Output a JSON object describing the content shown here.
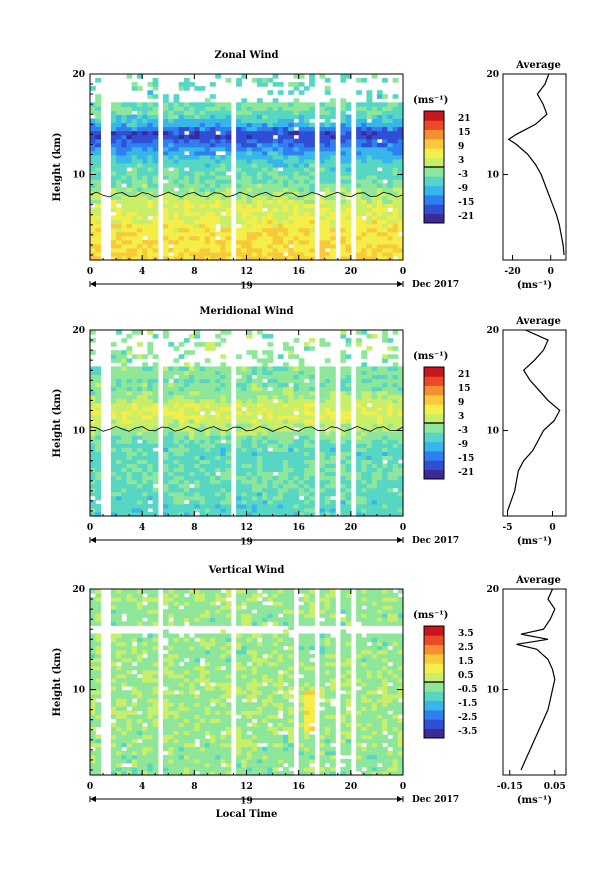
{
  "colorscale": [
    "#3b2a98",
    "#2f4fd6",
    "#2f7ff0",
    "#38b6ec",
    "#57d6c4",
    "#8ee69b",
    "#c8ee6a",
    "#f3ee49",
    "#f8c93b",
    "#f4902f",
    "#ea4a25",
    "#c8161e"
  ],
  "chart_data": [
    {
      "type": "heatmap",
      "title": "Zonal Wind",
      "ylabel": "Height (km)",
      "xlabel": "",
      "date_label": "19",
      "date_suffix": "Dec 2017",
      "x_ticks": [
        "0",
        "4",
        "8",
        "12",
        "16",
        "20",
        "0"
      ],
      "y_ticks": [
        "10",
        "20"
      ],
      "xlim": [
        0,
        24
      ],
      "ylim": [
        1.5,
        20
      ],
      "colorbar": {
        "unit": "(ms⁻¹)",
        "ticks": [
          "21",
          "15",
          "9",
          "3",
          "-3",
          "-9",
          "-15",
          "-21"
        ],
        "range": [
          -24,
          24
        ]
      },
      "data_gaps_hours": [
        [
          1.0,
          1.4
        ],
        [
          5.3,
          5.7
        ],
        [
          10.7,
          11.2
        ],
        [
          17.1,
          17.4
        ],
        [
          18.9,
          19.3
        ],
        [
          20.0,
          20.3
        ]
      ],
      "profile_stops_km": [
        {
          "h": 2,
          "v": 9
        },
        {
          "h": 5,
          "v": 6
        },
        {
          "h": 7,
          "v": 3
        },
        {
          "h": 9,
          "v": -3
        },
        {
          "h": 11,
          "v": -6
        },
        {
          "h": 12.5,
          "v": -12
        },
        {
          "h": 14,
          "v": -20
        },
        {
          "h": 15,
          "v": -10
        },
        {
          "h": 16.5,
          "v": -3
        },
        {
          "h": 18,
          "v": -6
        },
        {
          "h": 20,
          "v": -4
        }
      ],
      "profile_top_blank_km": 17,
      "average": {
        "title": "Average",
        "xlabel": "(ms⁻¹)",
        "x_ticks": [
          "-20",
          "0"
        ],
        "y_ticks": [
          "10",
          "20"
        ],
        "xlim": [
          -25,
          8
        ],
        "height_km": [
          2,
          3,
          4,
          5,
          6,
          7,
          8,
          9,
          10,
          11,
          12,
          13,
          13.5,
          14,
          15,
          16,
          17,
          18,
          19,
          20
        ],
        "values": [
          7,
          6.5,
          5.5,
          4.5,
          3,
          1,
          -1,
          -3,
          -5,
          -8,
          -12,
          -18,
          -22,
          -18,
          -8,
          -2,
          -4,
          -7,
          -3,
          -1
        ]
      }
    },
    {
      "type": "heatmap",
      "title": "Meridional Wind",
      "ylabel": "Height (km)",
      "xlabel": "",
      "date_label": "19",
      "date_suffix": "Dec 2017",
      "x_ticks": [
        "0",
        "4",
        "8",
        "12",
        "16",
        "20",
        "0"
      ],
      "y_ticks": [
        "10",
        "20"
      ],
      "xlim": [
        0,
        24
      ],
      "ylim": [
        1.5,
        20
      ],
      "colorbar": {
        "unit": "(ms⁻¹)",
        "ticks": [
          "21",
          "15",
          "9",
          "3",
          "-3",
          "-9",
          "-15",
          "-21"
        ],
        "range": [
          -24,
          24
        ]
      },
      "data_gaps_hours": [
        [
          1.0,
          1.4
        ],
        [
          5.3,
          5.7
        ],
        [
          10.7,
          11.2
        ],
        [
          17.1,
          17.4
        ],
        [
          18.9,
          19.3
        ],
        [
          20.0,
          20.3
        ]
      ],
      "profile_stops_km": [
        {
          "h": 2,
          "v": -6
        },
        {
          "h": 4,
          "v": -5
        },
        {
          "h": 6,
          "v": -4
        },
        {
          "h": 8,
          "v": -6
        },
        {
          "h": 9.5,
          "v": -2
        },
        {
          "h": 10.5,
          "v": 1
        },
        {
          "h": 11.5,
          "v": 4
        },
        {
          "h": 12.5,
          "v": 3
        },
        {
          "h": 13.5,
          "v": -1
        },
        {
          "h": 15,
          "v": -3
        },
        {
          "h": 18,
          "v": -2
        },
        {
          "h": 20,
          "v": -2
        }
      ],
      "profile_top_blank_km": 16.5,
      "average": {
        "title": "Average",
        "xlabel": "(ms⁻¹)",
        "x_ticks": [
          "-5",
          "0"
        ],
        "y_ticks": [
          "10",
          "20"
        ],
        "xlim": [
          -5.5,
          1.5
        ],
        "height_km": [
          2,
          3,
          4,
          5,
          6,
          7,
          8,
          9,
          10,
          11,
          12,
          13,
          14,
          15,
          16,
          17,
          18,
          19,
          20
        ],
        "values": [
          -5,
          -4.6,
          -4.2,
          -4,
          -3.8,
          -3.2,
          -2.2,
          -1.6,
          -1,
          0.2,
          0.8,
          -0.5,
          -1.5,
          -2.5,
          -3.2,
          -2,
          -1,
          -0.5,
          -3
        ]
      }
    },
    {
      "type": "heatmap",
      "title": "Vertical Wind",
      "ylabel": "Height (km)",
      "xlabel": "Local Time",
      "date_label": "19",
      "date_suffix": "Dec 2017",
      "x_ticks": [
        "0",
        "4",
        "8",
        "12",
        "16",
        "20",
        "0"
      ],
      "y_ticks": [
        "10",
        "20"
      ],
      "xlim": [
        0,
        24
      ],
      "ylim": [
        1.5,
        20
      ],
      "colorbar": {
        "unit": "(ms⁻¹)",
        "ticks": [
          "3.5",
          "2.5",
          "1.5",
          "0.5",
          "-0.5",
          "-1.5",
          "-2.5",
          "-3.5"
        ],
        "range": [
          -4,
          4
        ]
      },
      "data_gaps_hours": [
        [
          1.0,
          1.4
        ],
        [
          5.3,
          5.7
        ],
        [
          10.7,
          11.2
        ],
        [
          15.6,
          15.9
        ],
        [
          17.1,
          17.4
        ],
        [
          18.9,
          19.3
        ],
        [
          20.0,
          20.3
        ]
      ],
      "profile_stops_km": [
        {
          "h": 2,
          "v": -0.3
        },
        {
          "h": 6,
          "v": -0.2
        },
        {
          "h": 10,
          "v": -0.1
        },
        {
          "h": 13,
          "v": -0.2
        },
        {
          "h": 16,
          "v": -0.3
        },
        {
          "h": 20,
          "v": -0.1
        }
      ],
      "profile_top_blank_km": 20,
      "average": {
        "title": "Average",
        "xlabel": "(ms⁻¹)",
        "x_ticks": [
          "-0.15",
          "0.05"
        ],
        "y_ticks": [
          "10",
          "20"
        ],
        "xlim": [
          -0.18,
          0.1
        ],
        "height_km": [
          2,
          3,
          4,
          5,
          6,
          7,
          8,
          9,
          10,
          11,
          12,
          13,
          14,
          14.5,
          15,
          15.5,
          16,
          17,
          18,
          19,
          20
        ],
        "values": [
          -0.1,
          -0.08,
          -0.06,
          -0.04,
          -0.02,
          0,
          0.02,
          0.03,
          0.04,
          0.05,
          0.04,
          0.02,
          -0.03,
          -0.12,
          0.02,
          -0.1,
          0,
          0.03,
          0.05,
          0.02,
          0.04
        ]
      }
    }
  ]
}
